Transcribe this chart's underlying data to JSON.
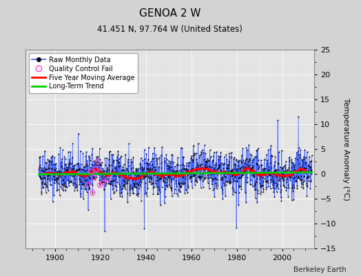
{
  "title": "GENOA 2 W",
  "subtitle": "41.451 N, 97.764 W (United States)",
  "ylabel": "Temperature Anomaly (°C)",
  "credit": "Berkeley Earth",
  "xlim": [
    1887,
    2014
  ],
  "ylim": [
    -15,
    25
  ],
  "yticks": [
    -15,
    -10,
    -5,
    0,
    5,
    10,
    15,
    20,
    25
  ],
  "xticks": [
    1900,
    1920,
    1940,
    1960,
    1980,
    2000
  ],
  "bg_color": "#d3d3d3",
  "plot_bg_color": "#e4e4e4",
  "grid_color": "#ffffff",
  "raw_line_color": "#3355ff",
  "raw_dot_color": "#000000",
  "qc_fail_color": "#ff44cc",
  "moving_avg_color": "#ff0000",
  "trend_color": "#00cc00",
  "seed": 42,
  "start_year": 1893,
  "end_year": 2013,
  "n_months": 1452
}
